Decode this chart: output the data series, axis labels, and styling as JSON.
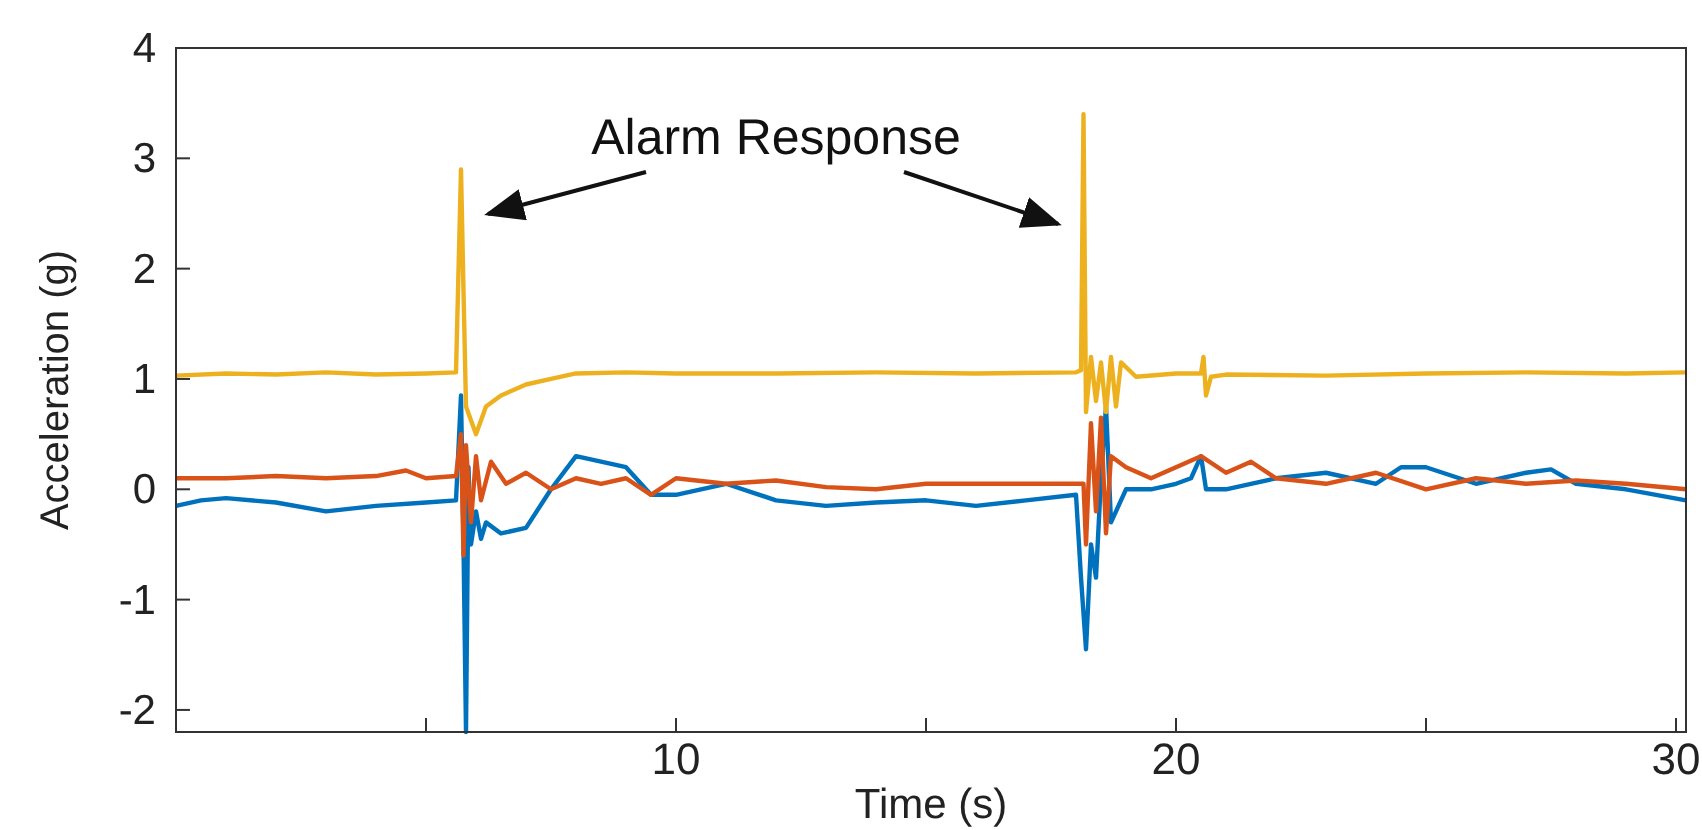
{
  "chart_data": {
    "type": "line",
    "xlabel": "Time (s)",
    "ylabel": "Acceleration (g)",
    "annotations": [
      "Alarm Response"
    ],
    "xlim": [
      0,
      30.2
    ],
    "ylim": [
      -2.2,
      4
    ],
    "xticks": [
      {
        "value": 5,
        "label": null
      },
      10,
      {
        "value": 15,
        "label": null
      },
      20,
      {
        "value": 25,
        "label": null
      },
      30
    ],
    "yticks": [
      -2,
      -1,
      0,
      1,
      2,
      3,
      4
    ],
    "line_style": "solid",
    "series": [
      {
        "color": "#edb120",
        "x": [
          0,
          1,
          2,
          3,
          4,
          5,
          5.6,
          5.7,
          5.75,
          5.8,
          6.0,
          6.2,
          6.5,
          7,
          7.5,
          8,
          9,
          10,
          12,
          14,
          16,
          18,
          18.1,
          18.15,
          18.2,
          18.3,
          18.4,
          18.5,
          18.6,
          18.7,
          18.8,
          18.9,
          19.2,
          20,
          20.5,
          20.55,
          20.6,
          20.7,
          21,
          23,
          25,
          27,
          29,
          30.2
        ],
        "values": [
          1.03,
          1.05,
          1.04,
          1.06,
          1.04,
          1.05,
          1.06,
          2.9,
          1.8,
          0.75,
          0.5,
          0.75,
          0.85,
          0.95,
          1.0,
          1.05,
          1.06,
          1.05,
          1.05,
          1.06,
          1.05,
          1.06,
          1.08,
          3.4,
          0.7,
          1.2,
          0.8,
          1.15,
          0.7,
          1.2,
          0.75,
          1.15,
          1.02,
          1.05,
          1.05,
          1.2,
          0.85,
          1.02,
          1.04,
          1.03,
          1.05,
          1.06,
          1.05,
          1.06
        ]
      },
      {
        "color": "#d95319",
        "x": [
          0,
          1,
          2,
          3,
          4,
          4.6,
          5,
          5.6,
          5.7,
          5.75,
          5.8,
          5.9,
          6.0,
          6.1,
          6.3,
          6.6,
          7,
          7.5,
          8,
          8.5,
          9,
          9.5,
          10,
          11,
          12,
          13,
          14,
          15,
          16,
          17,
          18,
          18.15,
          18.2,
          18.3,
          18.4,
          18.5,
          18.6,
          18.7,
          19,
          19.5,
          20,
          20.5,
          21,
          21.5,
          22,
          23,
          24,
          25,
          26,
          27,
          28,
          29,
          30.2
        ],
        "values": [
          0.1,
          0.1,
          0.12,
          0.1,
          0.12,
          0.17,
          0.1,
          0.12,
          0.5,
          -0.6,
          0.4,
          -0.3,
          0.3,
          -0.1,
          0.25,
          0.05,
          0.15,
          0.0,
          0.1,
          0.05,
          0.1,
          -0.05,
          0.1,
          0.05,
          0.08,
          0.02,
          0.0,
          0.05,
          0.05,
          0.05,
          0.05,
          0.05,
          -0.5,
          0.6,
          -0.2,
          0.65,
          -0.4,
          0.3,
          0.2,
          0.1,
          0.2,
          0.3,
          0.15,
          0.25,
          0.1,
          0.05,
          0.15,
          0.0,
          0.1,
          0.05,
          0.08,
          0.05,
          0.0
        ]
      },
      {
        "color": "#0072bd",
        "x": [
          0,
          0.5,
          1,
          2,
          3,
          4,
          5,
          5.6,
          5.7,
          5.75,
          5.8,
          5.85,
          5.9,
          6.0,
          6.1,
          6.2,
          6.5,
          7,
          7.5,
          8,
          8.5,
          9,
          9.5,
          10,
          11,
          12,
          13,
          14,
          15,
          16,
          17,
          18,
          18.1,
          18.2,
          18.3,
          18.4,
          18.5,
          18.6,
          18.7,
          19,
          19.5,
          20,
          20.3,
          20.5,
          20.6,
          21,
          22,
          23,
          24,
          24.5,
          25,
          26,
          27,
          27.5,
          28,
          29,
          30.2
        ],
        "values": [
          -0.15,
          -0.1,
          -0.08,
          -0.12,
          -0.2,
          -0.15,
          -0.12,
          -0.1,
          0.85,
          -0.5,
          -2.2,
          0.2,
          -0.5,
          -0.2,
          -0.45,
          -0.3,
          -0.4,
          -0.35,
          0.0,
          0.3,
          0.25,
          0.2,
          -0.05,
          -0.05,
          0.05,
          -0.1,
          -0.15,
          -0.12,
          -0.1,
          -0.15,
          -0.1,
          -0.05,
          -0.8,
          -1.45,
          -0.5,
          -0.8,
          0.1,
          0.75,
          -0.3,
          0.0,
          0.0,
          0.05,
          0.1,
          0.3,
          0.0,
          0.0,
          0.1,
          0.15,
          0.05,
          0.2,
          0.2,
          0.05,
          0.15,
          0.18,
          0.05,
          0.0,
          -0.1
        ]
      }
    ]
  }
}
